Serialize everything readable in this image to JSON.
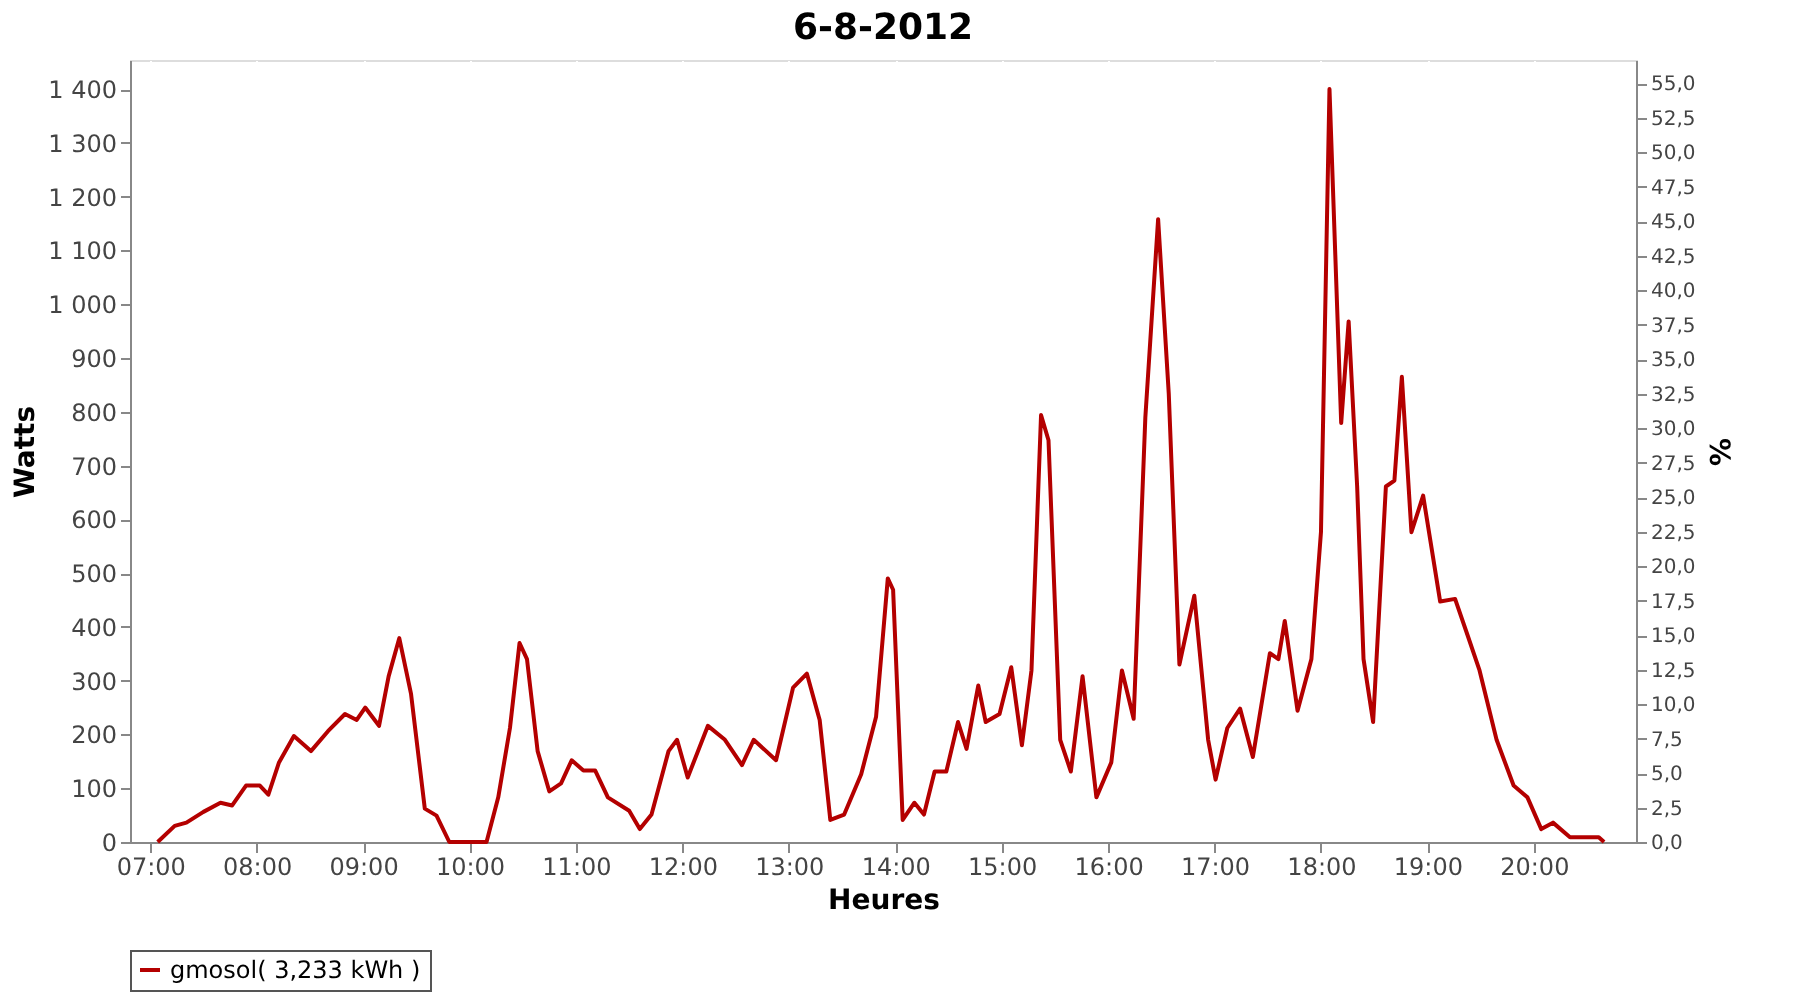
{
  "chart_data": {
    "type": "line",
    "title": "6-8-2012",
    "xlabel": "Heures",
    "ylabel": "Watts",
    "y2label": "%",
    "xlim": [
      6.81,
      20.96
    ],
    "xticks": [
      {
        "value": 7,
        "label": "07:00"
      },
      {
        "value": 8,
        "label": "08:00"
      },
      {
        "value": 9,
        "label": "09:00"
      },
      {
        "value": 10,
        "label": "10:00"
      },
      {
        "value": 11,
        "label": "11:00"
      },
      {
        "value": 12,
        "label": "12:00"
      },
      {
        "value": 13,
        "label": "13:00"
      },
      {
        "value": 14,
        "label": "14:00"
      },
      {
        "value": 15,
        "label": "15:00"
      },
      {
        "value": 16,
        "label": "16:00"
      },
      {
        "value": 17,
        "label": "17:00"
      },
      {
        "value": 18,
        "label": "18:00"
      },
      {
        "value": 19,
        "label": "19:00"
      },
      {
        "value": 20,
        "label": "20:00"
      }
    ],
    "ylim": [
      0,
      1454
    ],
    "yticks": [
      0,
      100,
      200,
      300,
      400,
      500,
      600,
      700,
      800,
      900,
      {
        "value": 1000,
        "label": "1 000"
      },
      {
        "value": 1100,
        "label": "1 100"
      },
      {
        "value": 1200,
        "label": "1 200"
      },
      {
        "value": 1300,
        "label": "1 300"
      },
      {
        "value": 1400,
        "label": "1 400"
      }
    ],
    "y2lim": [
      0,
      56.7
    ],
    "y2ticks": [
      {
        "value": 0,
        "label": "0,0"
      },
      {
        "value": 2.5,
        "label": "2,5"
      },
      {
        "value": 5,
        "label": "5,0"
      },
      {
        "value": 7.5,
        "label": "7,5"
      },
      {
        "value": 10,
        "label": "10,0"
      },
      {
        "value": 12.5,
        "label": "12,5"
      },
      {
        "value": 15,
        "label": "15,0"
      },
      {
        "value": 17.5,
        "label": "17,5"
      },
      {
        "value": 20,
        "label": "20,0"
      },
      {
        "value": 22.5,
        "label": "22,5"
      },
      {
        "value": 25,
        "label": "25,0"
      },
      {
        "value": 27.5,
        "label": "27,5"
      },
      {
        "value": 30,
        "label": "30,0"
      },
      {
        "value": 32.5,
        "label": "32,5"
      },
      {
        "value": 35,
        "label": "35,0"
      },
      {
        "value": 37.5,
        "label": "37,5"
      },
      {
        "value": 40,
        "label": "40,0"
      },
      {
        "value": 42.5,
        "label": "42,5"
      },
      {
        "value": 45,
        "label": "45,0"
      },
      {
        "value": 47.5,
        "label": "47,5"
      },
      {
        "value": 50,
        "label": "50,0"
      },
      {
        "value": 52.5,
        "label": "52,5"
      },
      {
        "value": 55,
        "label": "55,0"
      }
    ],
    "grid": true,
    "legend": "bottom",
    "marker": "none",
    "line_style": "solid",
    "series": [
      {
        "name": "gmosol( 3,233 kWh )",
        "color": "#b40000",
        "x": [
          7.07,
          7.23,
          7.34,
          7.5,
          7.66,
          7.77,
          7.9,
          8.03,
          8.11,
          8.21,
          8.35,
          8.51,
          8.67,
          8.83,
          8.94,
          9.02,
          9.15,
          9.24,
          9.34,
          9.45,
          9.58,
          9.69,
          9.81,
          10.16,
          10.27,
          10.38,
          10.47,
          10.54,
          10.64,
          10.75,
          10.86,
          10.96,
          11.07,
          11.18,
          11.3,
          11.5,
          11.6,
          11.71,
          11.87,
          11.95,
          12.05,
          12.24,
          12.4,
          12.56,
          12.67,
          12.88,
          13.04,
          13.17,
          13.29,
          13.39,
          13.52,
          13.68,
          13.82,
          13.93,
          13.98,
          14.07,
          14.18,
          14.27,
          14.37,
          14.48,
          14.59,
          14.67,
          14.78,
          14.85,
          14.98,
          15.09,
          15.19,
          15.28,
          15.37,
          15.44,
          15.55,
          15.65,
          15.76,
          15.89,
          16.03,
          16.13,
          16.24,
          16.35,
          16.47,
          16.57,
          16.67,
          16.81,
          16.94,
          17.01,
          17.12,
          17.24,
          17.36,
          17.52,
          17.6,
          17.66,
          17.78,
          17.91,
          18.0,
          18.08,
          18.19,
          18.26,
          18.34,
          18.4,
          18.49,
          18.61,
          18.69,
          18.76,
          18.85,
          18.96,
          19.12,
          19.26,
          19.38,
          19.49,
          19.65,
          19.81,
          19.94,
          20.07,
          20.18,
          20.34,
          20.47,
          20.61,
          20.66
        ],
        "values": [
          0,
          30,
          36,
          56,
          73,
          68,
          105,
          105,
          88,
          148,
          197,
          169,
          206,
          238,
          227,
          250,
          216,
          308,
          379,
          276,
          62,
          49,
          0,
          0,
          83,
          212,
          370,
          340,
          169,
          94,
          109,
          152,
          133,
          133,
          83,
          58,
          24,
          51,
          169,
          190,
          120,
          216,
          190,
          143,
          190,
          152,
          287,
          313,
          227,
          41,
          51,
          126,
          233,
          490,
          469,
          41,
          73,
          51,
          131,
          131,
          223,
          173,
          291,
          223,
          238,
          325,
          180,
          319,
          794,
          747,
          190,
          131,
          308,
          83,
          148,
          319,
          229,
          790,
          1158,
          833,
          330,
          458,
          190,
          116,
          212,
          248,
          158,
          351,
          340,
          411,
          244,
          340,
          576,
          1400,
          779,
          968,
          661,
          340,
          223,
          661,
          672,
          865,
          576,
          644,
          447,
          452,
          383,
          319,
          190,
          105,
          83,
          24,
          36,
          9,
          9,
          9,
          0
        ]
      }
    ]
  }
}
